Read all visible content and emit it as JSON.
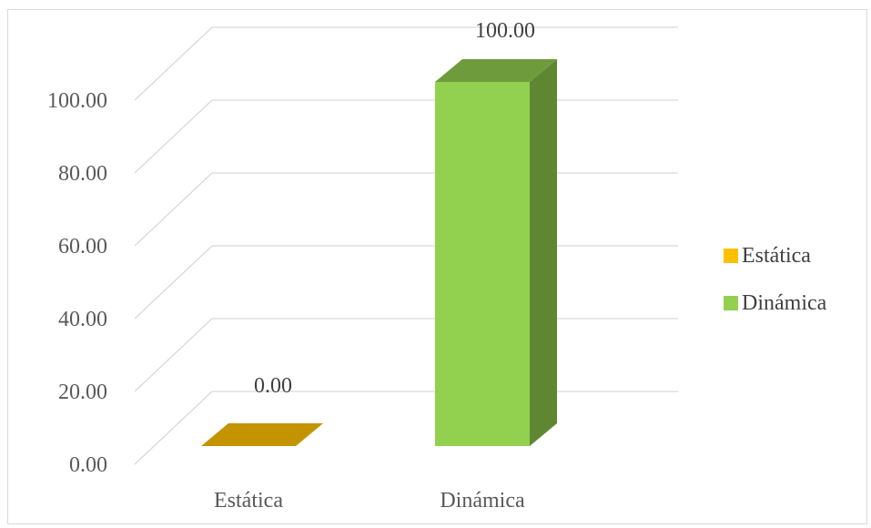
{
  "chart_data": {
    "type": "bar",
    "categories": [
      "Estática",
      "Dinámica"
    ],
    "values": [
      0.0,
      100.0
    ],
    "data_labels": [
      "0.00",
      "100.00"
    ],
    "title": "",
    "xlabel": "",
    "ylabel": "",
    "ylim": [
      0,
      100
    ],
    "y_ticks": [
      "0.00",
      "20.00",
      "40.00",
      "60.00",
      "80.00",
      "100.00"
    ],
    "grid": true,
    "three_d": true,
    "legend_position": "right",
    "legend": [
      {
        "label": "Estática",
        "color": "#FFC000"
      },
      {
        "label": "Dinámica",
        "color": "#92D050"
      }
    ],
    "colors": {
      "Estática": {
        "front": "#FFC000",
        "top": "#C49300",
        "side": "#B98C00"
      },
      "Dinámica": {
        "front": "#92D050",
        "top": "#6E9C3D",
        "side": "#5F8733"
      }
    }
  }
}
